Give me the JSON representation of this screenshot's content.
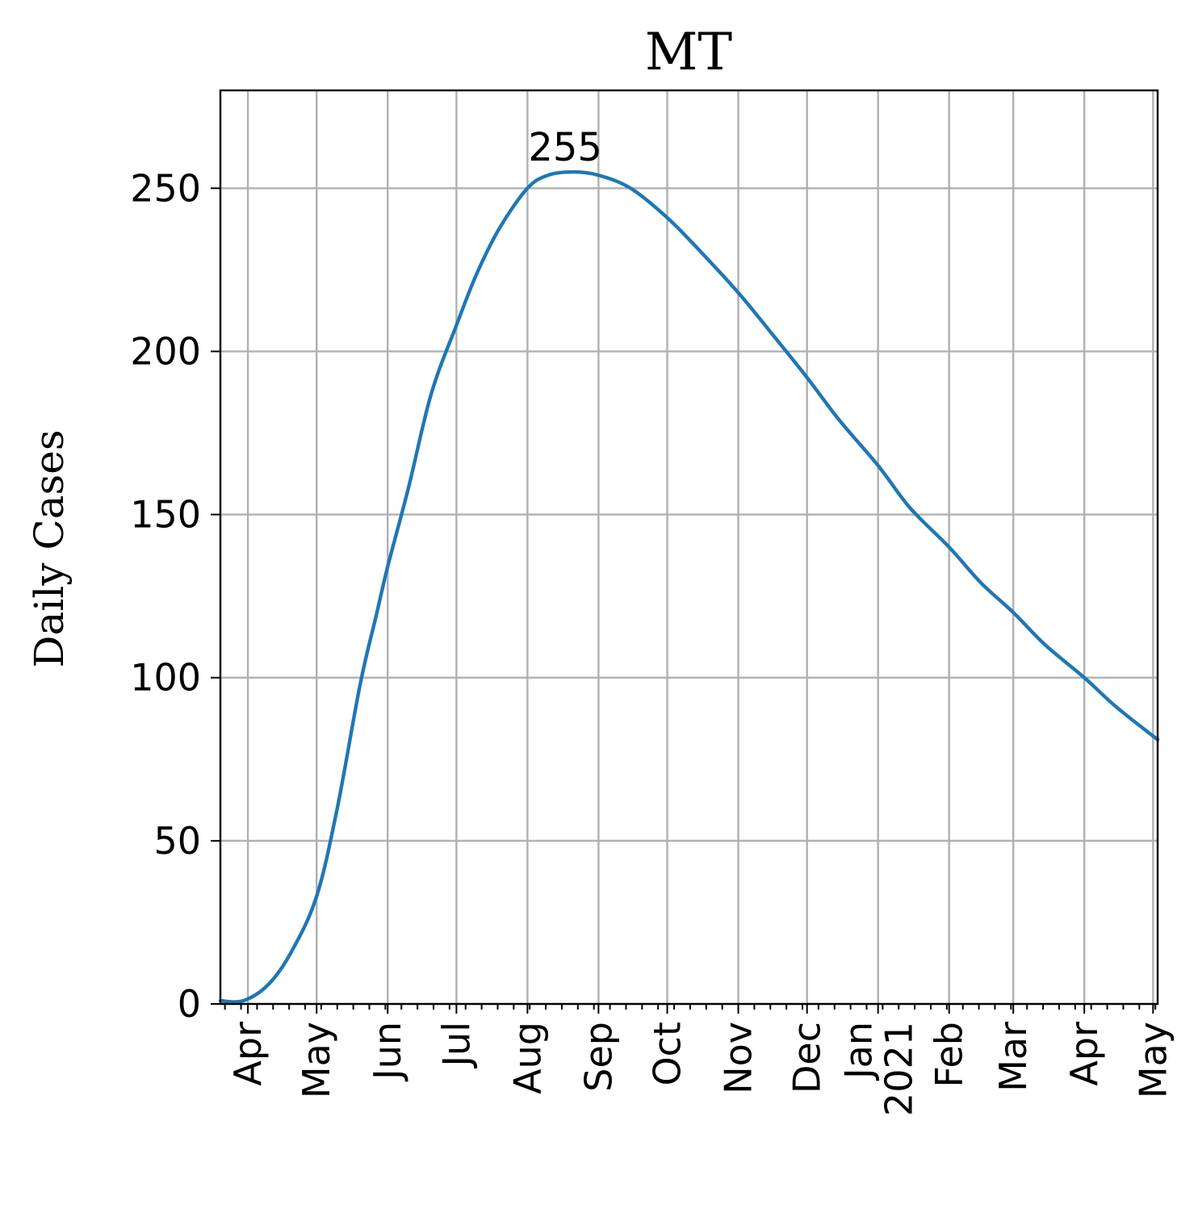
{
  "chart_data": {
    "type": "line",
    "title": "MT",
    "xlabel": "",
    "ylabel": "Daily Cases",
    "xlim": [
      "2020-03-20",
      "2021-05-03"
    ],
    "ylim": [
      0,
      280
    ],
    "yticks": [
      0,
      50,
      100,
      150,
      200,
      250
    ],
    "xticks": [
      {
        "date": "2020-04-01",
        "label": "Apr"
      },
      {
        "date": "2020-05-01",
        "label": "May"
      },
      {
        "date": "2020-06-01",
        "label": "Jun"
      },
      {
        "date": "2020-07-01",
        "label": "Jul"
      },
      {
        "date": "2020-08-01",
        "label": "Aug"
      },
      {
        "date": "2020-09-01",
        "label": "Sep"
      },
      {
        "date": "2020-10-01",
        "label": "Oct"
      },
      {
        "date": "2020-11-01",
        "label": "Nov"
      },
      {
        "date": "2020-12-01",
        "label": "Dec"
      },
      {
        "date": "2021-01-01",
        "label": "Jan\n2021"
      },
      {
        "date": "2021-02-01",
        "label": "Feb"
      },
      {
        "date": "2021-03-01",
        "label": "Mar"
      },
      {
        "date": "2021-04-01",
        "label": "Apr"
      },
      {
        "date": "2021-05-01",
        "label": "May"
      }
    ],
    "grid": true,
    "series": [
      {
        "color": "#1f77b4",
        "x": [
          "2020-03-20",
          "2020-03-30",
          "2020-04-10",
          "2020-04-20",
          "2020-05-01",
          "2020-05-10",
          "2020-05-20",
          "2020-05-27",
          "2020-06-01",
          "2020-06-10",
          "2020-06-20",
          "2020-07-01",
          "2020-07-10",
          "2020-07-20",
          "2020-08-01",
          "2020-08-10",
          "2020-08-21",
          "2020-09-01",
          "2020-09-15",
          "2020-10-01",
          "2020-10-15",
          "2020-11-01",
          "2020-11-15",
          "2020-12-01",
          "2020-12-15",
          "2021-01-01",
          "2021-01-15",
          "2021-02-01",
          "2021-02-15",
          "2021-03-01",
          "2021-03-15",
          "2021-04-01",
          "2021-04-15",
          "2021-05-03"
        ],
        "values": [
          1,
          1,
          6,
          16,
          33,
          60,
          98,
          119,
          134,
          158,
          187,
          208,
          224,
          238,
          250,
          254,
          255,
          254,
          250,
          241,
          231,
          218,
          206,
          192,
          179,
          165,
          152,
          140,
          129,
          120,
          110,
          100,
          91,
          81
        ]
      }
    ],
    "annotations": [
      {
        "text": "255",
        "x": "2020-08-21",
        "y": 255
      }
    ]
  }
}
